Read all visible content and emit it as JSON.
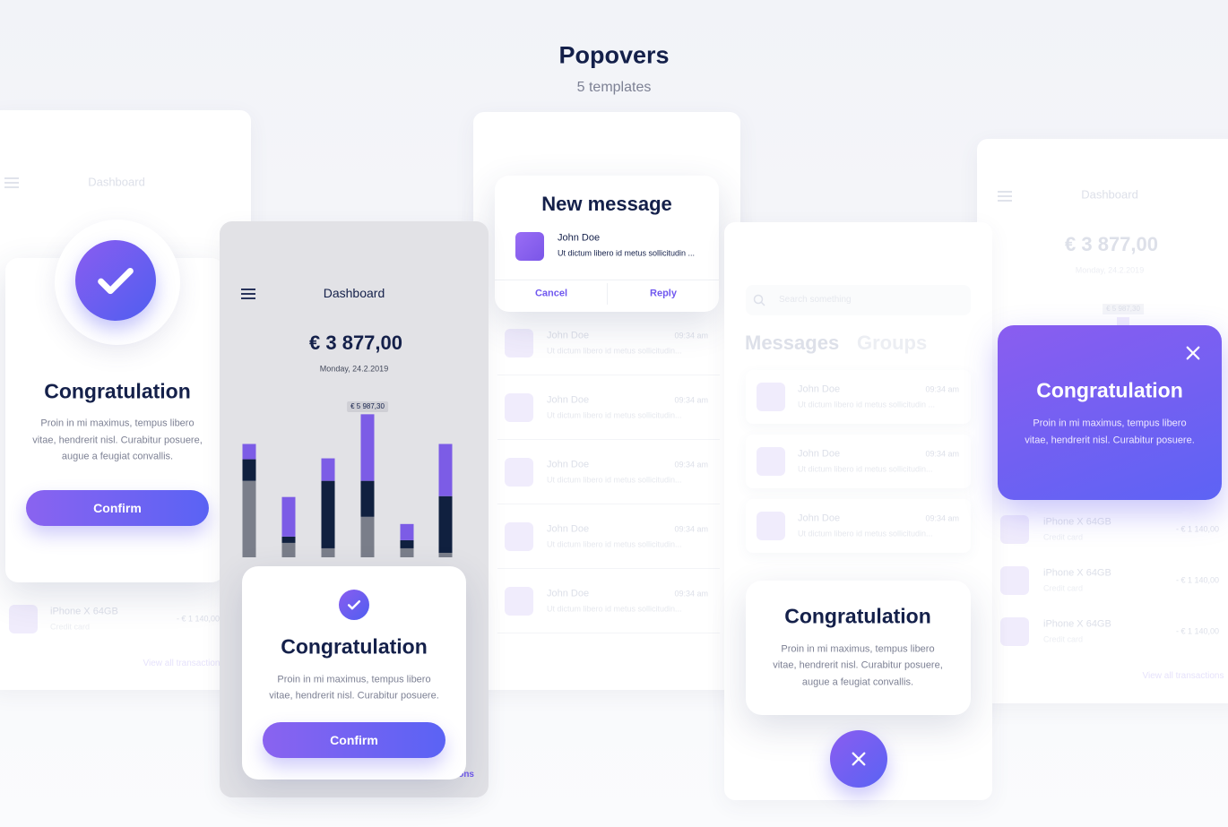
{
  "header": {
    "title": "Popovers",
    "subtitle": "5 templates"
  },
  "card1": {
    "nav_title": "Dashboard",
    "popover": {
      "title": "Congratulation",
      "body": [
        "Proin in mi maximus, tempus libero",
        "vitae, hendrerit nisl. Curabitur posuere,",
        "augue a feugiat convallis."
      ],
      "button": "Confirm"
    },
    "row": {
      "name": "iPhone X 64GB",
      "sub": "Credit card",
      "amount": "- € 1 140,00"
    },
    "link": "View all transactions"
  },
  "card2": {
    "nav_title": "Dashboard",
    "balance": "€ 3 877,00",
    "date": "Monday, 24.2.2019",
    "chart": {
      "type": "bar",
      "stacked": true,
      "ylim": [
        0,
        6000
      ],
      "peak_label": "€ 5 987,30",
      "series": [
        {
          "color": "#7a7e8a",
          "values": [
            3200,
            603,
            377,
            1695,
            377,
            188
          ]
        },
        {
          "color": "#10203f",
          "values": [
            904,
            264,
            2824,
            1506,
            339,
            2372
          ]
        },
        {
          "color": "#7c5ce6",
          "values": [
            640,
            1657,
            941,
            2786,
            678,
            2184
          ]
        }
      ]
    },
    "popover": {
      "title": "Congratulation",
      "body": [
        "Proin in mi maximus, tempus libero",
        "vitae, hendrerit nisl. Curabitur posuere."
      ],
      "button": "Confirm"
    },
    "link": "View all transactions"
  },
  "card3": {
    "popover": {
      "title": "New message",
      "sender": "John Doe",
      "preview": "Ut dictum libero id metus sollicitudin ...",
      "cancel": "Cancel",
      "reply": "Reply"
    },
    "rows": [
      {
        "name": "John Doe",
        "time": "09:34 am",
        "preview": "Ut dictum libero id metus sollicitudin..."
      },
      {
        "name": "John Doe",
        "time": "09:34 am",
        "preview": "Ut dictum libero id metus sollicitudin..."
      },
      {
        "name": "John Doe",
        "time": "09:34 am",
        "preview": "Ut dictum libero id metus sollicitudin..."
      },
      {
        "name": "John Doe",
        "time": "09:34 am",
        "preview": "Ut dictum libero id metus sollicitudin..."
      },
      {
        "name": "John Doe",
        "time": "09:34 am",
        "preview": "Ut dictum libero id metus sollicitudin..."
      }
    ]
  },
  "card4": {
    "search": "Search something",
    "tabs": [
      "Messages",
      "Groups"
    ],
    "rows": [
      {
        "name": "John Doe",
        "time": "09:34 am",
        "preview": "Ut dictum libero id metus sollicitudin ..."
      },
      {
        "name": "John Doe",
        "time": "09:34 am",
        "preview": "Ut dictum libero id metus sollicitudin..."
      },
      {
        "name": "John Doe",
        "time": "09:34 am",
        "preview": "Ut dictum libero id metus sollicitudin..."
      }
    ],
    "popover": {
      "title": "Congratulation",
      "body": [
        "Proin in mi maximus, tempus libero",
        "vitae, hendrerit nisl. Curabitur posuere,",
        "augue a feugiat convallis."
      ]
    }
  },
  "card5": {
    "nav_title": "Dashboard",
    "balance": "€ 3 877,00",
    "date": "Monday, 24.2.2019",
    "peak": "€ 5 987,30",
    "popover": {
      "title": "Congratulation",
      "body": [
        "Proin in mi maximus, tempus libero",
        "vitae, hendrerit nisl. Curabitur posuere."
      ]
    },
    "rows": [
      {
        "name": "iPhone X 64GB",
        "sub": "Credit card",
        "amount": "- € 1 140,00"
      },
      {
        "name": "iPhone X 64GB",
        "sub": "Credit card",
        "amount": "- € 1 140,00"
      },
      {
        "name": "iPhone X 64GB",
        "sub": "Credit card",
        "amount": "- € 1 140,00"
      }
    ],
    "link": "View all transactions"
  }
}
